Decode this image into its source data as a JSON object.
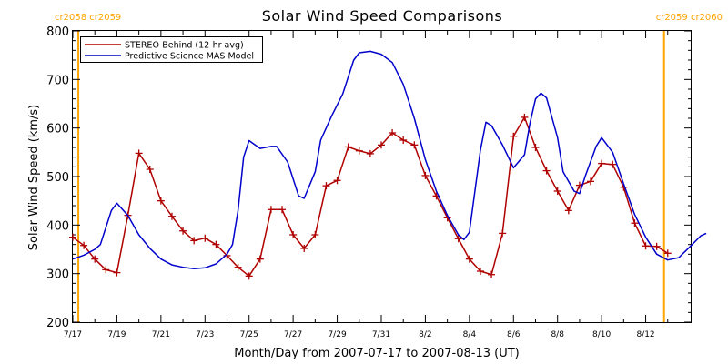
{
  "chart_data": {
    "type": "line",
    "title": "Solar Wind Speed Comparisons",
    "xlabel": "Month/Day from 2007-07-17 to 2007-08-13 (UT)",
    "ylabel": "Solar Wind Speed (km/s)",
    "xlim": [
      "2007-07-17",
      "2007-08-13"
    ],
    "ylim": [
      200,
      800
    ],
    "x_ticks": [
      {
        "date": "2007-07-17",
        "label": "7/17"
      },
      {
        "date": "2007-07-19",
        "label": "7/19"
      },
      {
        "date": "2007-07-21",
        "label": "7/21"
      },
      {
        "date": "2007-07-23",
        "label": "7/23"
      },
      {
        "date": "2007-07-25",
        "label": "7/25"
      },
      {
        "date": "2007-07-27",
        "label": "7/27"
      },
      {
        "date": "2007-07-29",
        "label": "7/29"
      },
      {
        "date": "2007-07-31",
        "label": "7/31"
      },
      {
        "date": "2007-08-02",
        "label": "8/2"
      },
      {
        "date": "2007-08-04",
        "label": "8/4"
      },
      {
        "date": "2007-08-06",
        "label": "8/6"
      },
      {
        "date": "2007-08-08",
        "label": "8/8"
      },
      {
        "date": "2007-08-10",
        "label": "8/10"
      },
      {
        "date": "2007-08-12",
        "label": "8/12"
      }
    ],
    "y_ticks": [
      200,
      300,
      400,
      500,
      600,
      700,
      800
    ],
    "grid": false,
    "legend_position": "top-left",
    "markers": [
      {
        "date": "2007-07-17 06:00",
        "color": "#FFA500",
        "label": "cr2058 cr2059"
      },
      {
        "date": "2007-08-12 20:00",
        "color": "#FFA500",
        "label": "cr2059 cr2060"
      }
    ],
    "series": [
      {
        "name": "STEREO-Behind (12-hr avg)",
        "color": "#B00000",
        "marker": "plus",
        "points": [
          [
            "2007-07-17 00:00",
            375
          ],
          [
            "2007-07-17 12:00",
            358
          ],
          [
            "2007-07-18 00:00",
            330
          ],
          [
            "2007-07-18 12:00",
            308
          ],
          [
            "2007-07-19 00:00",
            302
          ],
          [
            "2007-07-19 12:00",
            420
          ],
          [
            "2007-07-20 00:00",
            548
          ],
          [
            "2007-07-20 12:00",
            515
          ],
          [
            "2007-07-21 00:00",
            450
          ],
          [
            "2007-07-21 12:00",
            418
          ],
          [
            "2007-07-22 00:00",
            388
          ],
          [
            "2007-07-22 12:00",
            368
          ],
          [
            "2007-07-23 00:00",
            373
          ],
          [
            "2007-07-23 12:00",
            360
          ],
          [
            "2007-07-24 00:00",
            337
          ],
          [
            "2007-07-24 12:00",
            313
          ],
          [
            "2007-07-25 00:00",
            295
          ],
          [
            "2007-07-25 12:00",
            330
          ],
          [
            "2007-07-26 00:00",
            432
          ],
          [
            "2007-07-26 12:00",
            432
          ],
          [
            "2007-07-27 00:00",
            380
          ],
          [
            "2007-07-27 12:00",
            352
          ],
          [
            "2007-07-28 00:00",
            380
          ],
          [
            "2007-07-28 12:00",
            481
          ],
          [
            "2007-07-29 00:00",
            492
          ],
          [
            "2007-07-29 12:00",
            561
          ],
          [
            "2007-07-30 00:00",
            553
          ],
          [
            "2007-07-30 12:00",
            547
          ],
          [
            "2007-07-31 00:00",
            565
          ],
          [
            "2007-07-31 12:00",
            590
          ],
          [
            "2007-08-01 00:00",
            575
          ],
          [
            "2007-08-01 12:00",
            565
          ],
          [
            "2007-08-02 00:00",
            502
          ],
          [
            "2007-08-02 12:00",
            460
          ],
          [
            "2007-08-03 00:00",
            415
          ],
          [
            "2007-08-03 12:00",
            372
          ],
          [
            "2007-08-04 00:00",
            330
          ],
          [
            "2007-08-04 12:00",
            305
          ],
          [
            "2007-08-05 00:00",
            298
          ],
          [
            "2007-08-05 12:00",
            383
          ],
          [
            "2007-08-06 00:00",
            583
          ],
          [
            "2007-08-06 12:00",
            622
          ],
          [
            "2007-08-07 00:00",
            560
          ],
          [
            "2007-08-07 12:00",
            512
          ],
          [
            "2007-08-08 00:00",
            470
          ],
          [
            "2007-08-08 12:00",
            430
          ],
          [
            "2007-08-09 00:00",
            482
          ],
          [
            "2007-08-09 12:00",
            490
          ],
          [
            "2007-08-10 00:00",
            527
          ],
          [
            "2007-08-10 12:00",
            525
          ],
          [
            "2007-08-11 00:00",
            478
          ],
          [
            "2007-08-11 12:00",
            404
          ],
          [
            "2007-08-12 00:00",
            357
          ],
          [
            "2007-08-12 12:00",
            356
          ],
          [
            "2007-08-13 00:00",
            342
          ]
        ]
      },
      {
        "name": "Predictive Science MAS Model",
        "color": "#0000CC",
        "marker": "none",
        "points": [
          [
            "2007-07-17 00:00",
            330
          ],
          [
            "2007-07-17 12:00",
            338
          ],
          [
            "2007-07-18 00:00",
            350
          ],
          [
            "2007-07-18 06:00",
            360
          ],
          [
            "2007-07-18 18:00",
            430
          ],
          [
            "2007-07-19 00:00",
            445
          ],
          [
            "2007-07-19 12:00",
            420
          ],
          [
            "2007-07-20 00:00",
            380
          ],
          [
            "2007-07-20 12:00",
            352
          ],
          [
            "2007-07-21 00:00",
            330
          ],
          [
            "2007-07-21 12:00",
            318
          ],
          [
            "2007-07-22 00:00",
            313
          ],
          [
            "2007-07-22 12:00",
            310
          ],
          [
            "2007-07-23 00:00",
            312
          ],
          [
            "2007-07-23 12:00",
            320
          ],
          [
            "2007-07-24 00:00",
            340
          ],
          [
            "2007-07-24 06:00",
            360
          ],
          [
            "2007-07-24 12:00",
            430
          ],
          [
            "2007-07-24 18:00",
            540
          ],
          [
            "2007-07-25 00:00",
            574
          ],
          [
            "2007-07-25 12:00",
            558
          ],
          [
            "2007-07-26 00:00",
            562
          ],
          [
            "2007-07-26 06:00",
            562
          ],
          [
            "2007-07-26 18:00",
            530
          ],
          [
            "2007-07-27 06:00",
            460
          ],
          [
            "2007-07-27 12:00",
            455
          ],
          [
            "2007-07-28 00:00",
            510
          ],
          [
            "2007-07-28 06:00",
            575
          ],
          [
            "2007-07-28 18:00",
            625
          ],
          [
            "2007-07-29 06:00",
            670
          ],
          [
            "2007-07-29 18:00",
            740
          ],
          [
            "2007-07-30 00:00",
            755
          ],
          [
            "2007-07-30 12:00",
            758
          ],
          [
            "2007-07-31 00:00",
            752
          ],
          [
            "2007-07-31 12:00",
            735
          ],
          [
            "2007-08-01 00:00",
            690
          ],
          [
            "2007-08-01 12:00",
            620
          ],
          [
            "2007-08-02 00:00",
            535
          ],
          [
            "2007-08-02 12:00",
            470
          ],
          [
            "2007-08-03 00:00",
            420
          ],
          [
            "2007-08-03 12:00",
            380
          ],
          [
            "2007-08-03 18:00",
            370
          ],
          [
            "2007-08-04 00:00",
            385
          ],
          [
            "2007-08-04 12:00",
            555
          ],
          [
            "2007-08-04 18:00",
            612
          ],
          [
            "2007-08-05 00:00",
            605
          ],
          [
            "2007-08-05 12:00",
            565
          ],
          [
            "2007-08-06 00:00",
            518
          ],
          [
            "2007-08-06 12:00",
            545
          ],
          [
            "2007-08-06 18:00",
            610
          ],
          [
            "2007-08-07 00:00",
            660
          ],
          [
            "2007-08-07 06:00",
            672
          ],
          [
            "2007-08-07 12:00",
            662
          ],
          [
            "2007-08-08 00:00",
            580
          ],
          [
            "2007-08-08 06:00",
            510
          ],
          [
            "2007-08-08 18:00",
            470
          ],
          [
            "2007-08-09 00:00",
            465
          ],
          [
            "2007-08-09 06:00",
            500
          ],
          [
            "2007-08-09 18:00",
            562
          ],
          [
            "2007-08-10 00:00",
            580
          ],
          [
            "2007-08-10 12:00",
            550
          ],
          [
            "2007-08-11 00:00",
            485
          ],
          [
            "2007-08-11 12:00",
            422
          ],
          [
            "2007-08-12 00:00",
            375
          ],
          [
            "2007-08-12 12:00",
            340
          ],
          [
            "2007-08-13 00:00",
            328
          ],
          [
            "2007-08-13 12:00",
            333
          ],
          [
            "2007-08-14 00:00",
            355
          ],
          [
            "2007-08-14 12:00",
            378
          ],
          [
            "2007-08-14 18:00",
            383
          ]
        ]
      }
    ]
  }
}
